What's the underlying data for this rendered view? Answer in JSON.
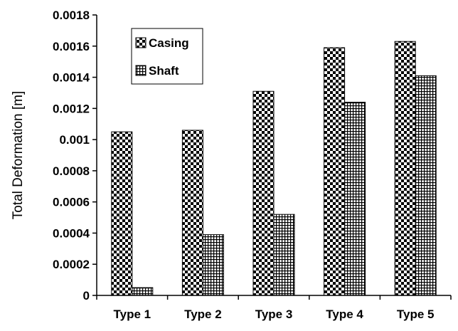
{
  "chart_data": {
    "type": "bar",
    "title": "",
    "xlabel": "",
    "ylabel": "Total Deformation [m]",
    "ylim": [
      0,
      0.0018
    ],
    "yticks": [
      "0",
      "0.0002",
      "0.0004",
      "0.0006",
      "0.0008",
      "0.001",
      "0.0012",
      "0.0014",
      "0.0016",
      "0.0018"
    ],
    "grid": false,
    "legend_position": "top-left",
    "categories": [
      "Type 1",
      "Type 2",
      "Type 3",
      "Type 4",
      "Type 5"
    ],
    "series": [
      {
        "name": "Casing",
        "values": [
          0.00105,
          0.00106,
          0.00131,
          0.00159,
          0.00163
        ],
        "pattern": "checkerboard"
      },
      {
        "name": "Shaft",
        "values": [
          5e-05,
          0.00039,
          0.00052,
          0.00124,
          0.00141
        ],
        "pattern": "grid"
      }
    ]
  }
}
